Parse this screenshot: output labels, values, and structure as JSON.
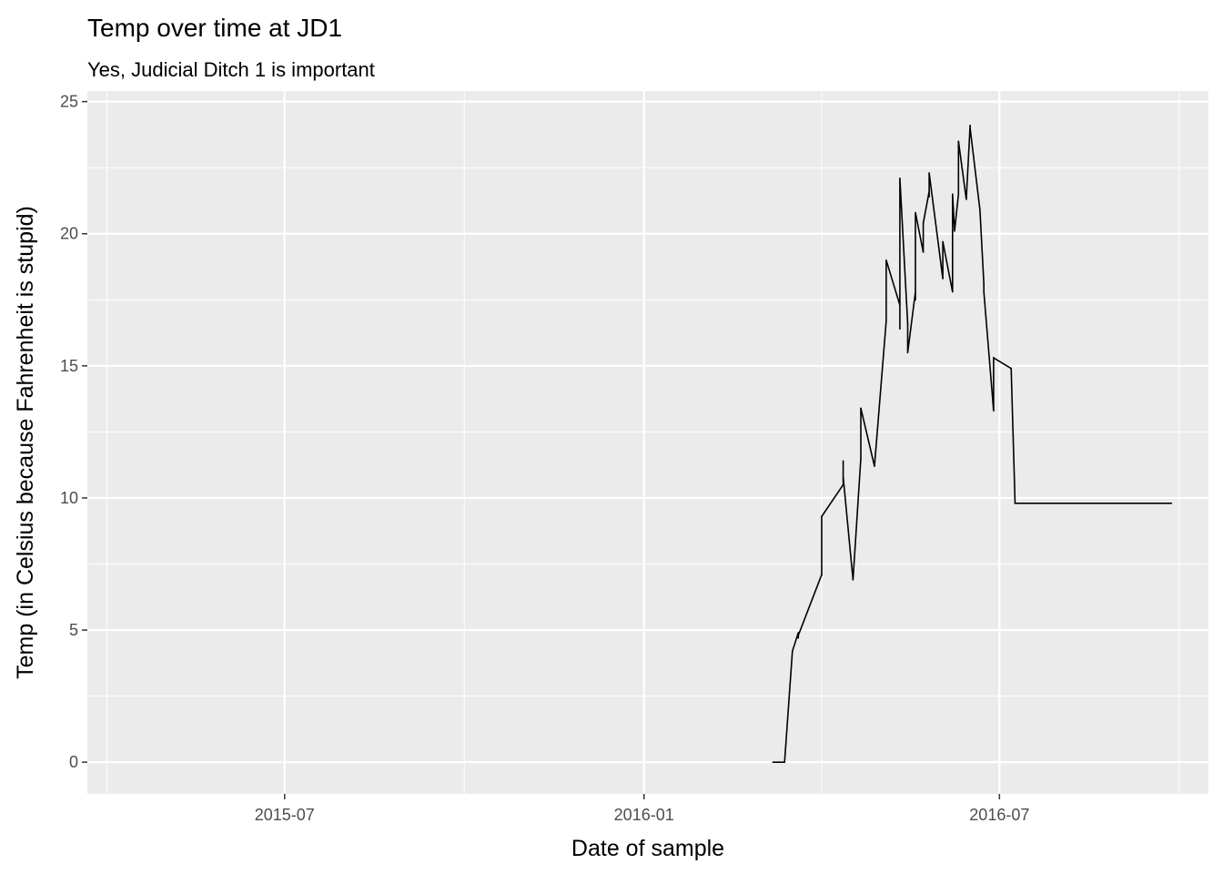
{
  "chart_data": {
    "type": "line",
    "title": "Temp over time at JD1",
    "subtitle": "Yes, Judicial Ditch 1 is important",
    "xlabel": "Date of sample",
    "ylabel": "Temp (in Celsius because Fahrenheit is stupid)",
    "x_ticks": [
      {
        "date": "2015-07-01",
        "label": "2015-07"
      },
      {
        "date": "2016-01-01",
        "label": "2016-01"
      },
      {
        "date": "2016-07-01",
        "label": "2016-07"
      }
    ],
    "x_minor_ticks": [
      "2015-04-01",
      "2015-10-01",
      "2016-04-01",
      "2016-10-01"
    ],
    "xlim": [
      "2015-03-22",
      "2016-10-16"
    ],
    "y_ticks": [
      0,
      5,
      10,
      15,
      20,
      25
    ],
    "ylim": [
      -1.2,
      25.4
    ],
    "grid": true,
    "background": "#ebebeb",
    "grid_color": "#ffffff",
    "line_color": "#000000",
    "series": [
      {
        "x": [
          "2016-03-07",
          "2016-03-13",
          "2016-03-13",
          "2016-03-17",
          "2016-03-20",
          "2016-03-20",
          "2016-03-20",
          "2016-04-01",
          "2016-04-01",
          "2016-04-12",
          "2016-04-12",
          "2016-04-12",
          "2016-04-17",
          "2016-04-21",
          "2016-04-21",
          "2016-04-28",
          "2016-05-04",
          "2016-05-04",
          "2016-05-11",
          "2016-05-11",
          "2016-05-11",
          "2016-05-15",
          "2016-05-15",
          "2016-05-19",
          "2016-05-19",
          "2016-05-19",
          "2016-05-23",
          "2016-05-23",
          "2016-05-26",
          "2016-05-26",
          "2016-05-26",
          "2016-06-02",
          "2016-06-02",
          "2016-06-07",
          "2016-06-07",
          "2016-06-07",
          "2016-06-08",
          "2016-06-10",
          "2016-06-10",
          "2016-06-14",
          "2016-06-16",
          "2016-06-16",
          "2016-06-21",
          "2016-06-23",
          "2016-06-23",
          "2016-06-28",
          "2016-06-28",
          "2016-07-07",
          "2016-07-09",
          "2016-07-09",
          "2016-07-14",
          "2016-07-18",
          "2016-07-18",
          "2016-07-20",
          "2016-07-20",
          "2016-07-21",
          "2016-08-01",
          "2016-08-03",
          "2016-08-03",
          "2016-08-04",
          "2016-08-12",
          "2016-08-29",
          "2016-09-14",
          "2016-09-17",
          "2016-09-24",
          "2016-09-27",
          "2016-09-27"
        ],
        "values": [
          0.0,
          0.0,
          0.0,
          4.2,
          4.9,
          4.7,
          4.8,
          7.1,
          9.3,
          10.5,
          11.4,
          10.8,
          6.9,
          11.5,
          13.4,
          11.2,
          16.7,
          19.0,
          17.3,
          16.4,
          22.1,
          16.6,
          15.5,
          17.8,
          17.5,
          20.8,
          19.3,
          20.4,
          21.6,
          21.4,
          22.3,
          18.3,
          19.7,
          17.8,
          17.9,
          21.5,
          20.1,
          21.5,
          23.5,
          21.3,
          24.1,
          24.0,
          20.9,
          18.1,
          17.8,
          13.3,
          15.3,
          14.9,
          9.8,
          9.8,
          9.8,
          9.8,
          9.8,
          9.8,
          9.8,
          9.8,
          9.8,
          9.8,
          9.8,
          9.8,
          9.8,
          9.8,
          9.8,
          9.8,
          9.8,
          9.8,
          9.8
        ]
      }
    ]
  }
}
